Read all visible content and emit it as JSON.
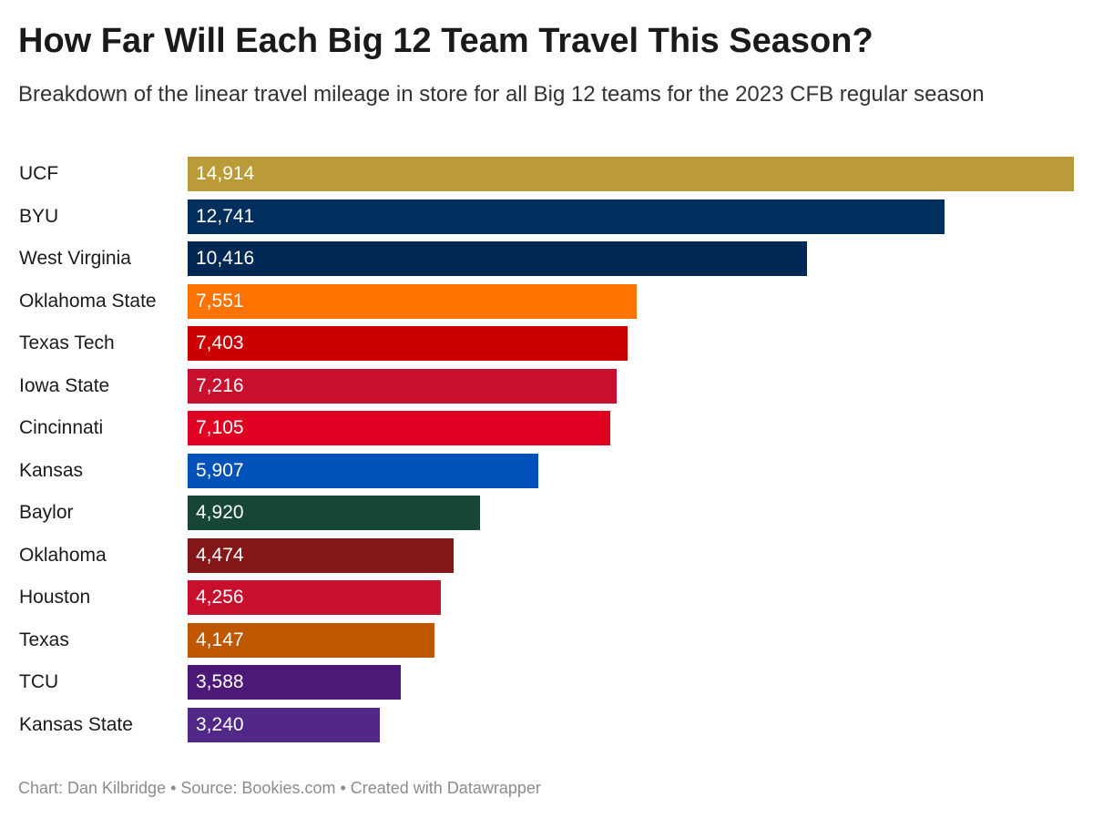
{
  "header": {
    "title": "How Far Will Each Big 12 Team Travel This Season?",
    "subtitle": "Breakdown of the linear travel mileage in store for all Big 12 teams for the 2023 CFB regular season"
  },
  "footer": {
    "credit": "Chart: Dan Kilbridge • Source: Bookies.com • Created with Datawrapper"
  },
  "chart_data": {
    "type": "bar",
    "orientation": "horizontal",
    "title": "How Far Will Each Big 12 Team Travel This Season?",
    "subtitle": "Breakdown of the linear travel mileage in store for all Big 12 teams for the 2023 CFB regular season",
    "xlabel": "",
    "ylabel": "",
    "xlim": [
      0,
      14914
    ],
    "grid": false,
    "legend": "none",
    "categories": [
      "UCF",
      "BYU",
      "West Virginia",
      "Oklahoma State",
      "Texas Tech",
      "Iowa State",
      "Cincinnati",
      "Kansas",
      "Baylor",
      "Oklahoma",
      "Houston",
      "Texas",
      "TCU",
      "Kansas State"
    ],
    "values": [
      14914,
      12741,
      10416,
      7551,
      7403,
      7216,
      7105,
      5907,
      4920,
      4474,
      4256,
      4147,
      3588,
      3240
    ],
    "value_labels": [
      "14,914",
      "12,741",
      "10,416",
      "7,551",
      "7,403",
      "7,216",
      "7,105",
      "5,907",
      "4,920",
      "4,474",
      "4,256",
      "4,147",
      "3,588",
      "3,240"
    ],
    "colors": [
      "#BA9B37",
      "#002E5D",
      "#002855",
      "#FF7300",
      "#CC0000",
      "#C8102E",
      "#E00122",
      "#0051BA",
      "#154734",
      "#841617",
      "#C8102E",
      "#BF5700",
      "#4D1979",
      "#512888"
    ]
  }
}
